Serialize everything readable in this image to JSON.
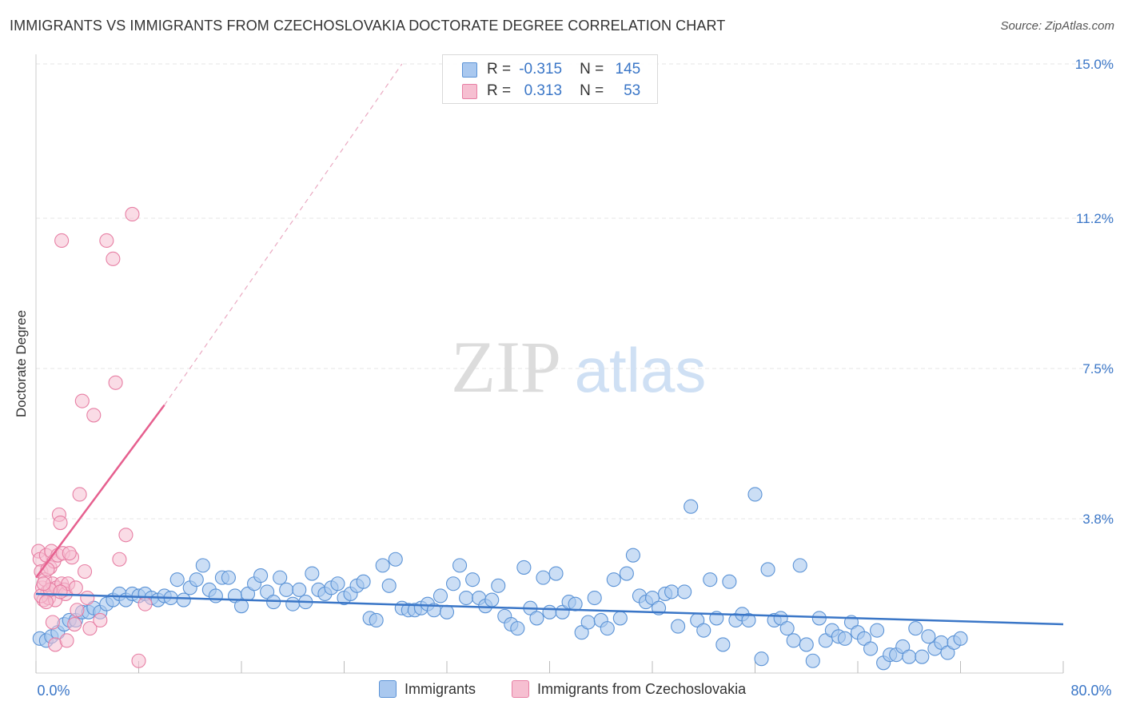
{
  "title": "IMMIGRANTS VS IMMIGRANTS FROM CZECHOSLOVAKIA DOCTORATE DEGREE CORRELATION CHART",
  "source": "Source: ZipAtlas.com",
  "watermark": {
    "zip": "ZIP",
    "atlas": "atlas"
  },
  "legend": {
    "rows": [
      {
        "r_label": "R =",
        "r_value": "-0.315",
        "n_label": "N =",
        "n_value": "145"
      },
      {
        "r_label": "R =",
        "r_value": "0.313",
        "n_label": "N =",
        "n_value": "53"
      }
    ]
  },
  "bottom_legend": [
    "Immigrants",
    "Immigrants from Czechoslovakia"
  ],
  "colors": {
    "blue_fill": "#a9c8ef",
    "blue_stroke": "#5b93d6",
    "blue_line": "#3a76c7",
    "pink_fill": "#f6bfd1",
    "pink_stroke": "#e77fa4",
    "pink_line": "#e6608f",
    "axis_text": "#3a76c7",
    "grid": "#e6e6e6"
  },
  "chart_data": {
    "type": "scatter",
    "title": "IMMIGRANTS VS IMMIGRANTS FROM CZECHOSLOVAKIA DOCTORATE DEGREE CORRELATION CHART",
    "xlabel": "",
    "ylabel": "Doctorate Degree",
    "xlim": [
      0,
      80
    ],
    "ylim": [
      0,
      15
    ],
    "x_tick_labels": [
      "0.0%",
      "80.0%"
    ],
    "y_ticks": [
      3.8,
      7.5,
      11.2,
      15.0
    ],
    "y_tick_labels": [
      "3.8%",
      "7.5%",
      "11.2%",
      "15.0%"
    ],
    "grid": true,
    "series": [
      {
        "name": "Immigrants",
        "R": -0.315,
        "N": 145,
        "trend": {
          "x0": 0,
          "y0": 1.95,
          "x1": 80,
          "y1": 1.2
        },
        "points": [
          [
            0.3,
            0.85
          ],
          [
            0.8,
            0.8
          ],
          [
            1.2,
            0.9
          ],
          [
            1.7,
            1.0
          ],
          [
            2.2,
            1.2
          ],
          [
            2.6,
            1.3
          ],
          [
            3.1,
            1.3
          ],
          [
            3.6,
            1.5
          ],
          [
            4.1,
            1.5
          ],
          [
            4.5,
            1.6
          ],
          [
            5.0,
            1.5
          ],
          [
            5.5,
            1.7
          ],
          [
            6.0,
            1.8
          ],
          [
            6.5,
            1.95
          ],
          [
            7.0,
            1.8
          ],
          [
            7.5,
            1.95
          ],
          [
            8.0,
            1.9
          ],
          [
            8.5,
            1.95
          ],
          [
            9.0,
            1.85
          ],
          [
            9.5,
            1.8
          ],
          [
            10.0,
            1.9
          ],
          [
            10.5,
            1.85
          ],
          [
            11.0,
            2.3
          ],
          [
            11.5,
            1.8
          ],
          [
            12.0,
            2.1
          ],
          [
            12.5,
            2.3
          ],
          [
            13.0,
            2.65
          ],
          [
            13.5,
            2.05
          ],
          [
            14.0,
            1.9
          ],
          [
            14.5,
            2.35
          ],
          [
            15.0,
            2.35
          ],
          [
            15.5,
            1.9
          ],
          [
            16.0,
            1.65
          ],
          [
            16.5,
            1.95
          ],
          [
            17.0,
            2.2
          ],
          [
            17.5,
            2.4
          ],
          [
            18.0,
            2.0
          ],
          [
            18.5,
            1.75
          ],
          [
            19.0,
            2.35
          ],
          [
            19.5,
            2.05
          ],
          [
            20.0,
            1.7
          ],
          [
            20.5,
            2.05
          ],
          [
            21.0,
            1.75
          ],
          [
            21.5,
            2.45
          ],
          [
            22.0,
            2.05
          ],
          [
            22.5,
            1.95
          ],
          [
            23.0,
            2.1
          ],
          [
            23.5,
            2.2
          ],
          [
            24.0,
            1.85
          ],
          [
            24.5,
            1.95
          ],
          [
            25.0,
            2.15
          ],
          [
            25.5,
            2.25
          ],
          [
            26.0,
            1.35
          ],
          [
            26.5,
            1.3
          ],
          [
            27.0,
            2.65
          ],
          [
            27.5,
            2.15
          ],
          [
            28.0,
            2.8
          ],
          [
            28.5,
            1.6
          ],
          [
            29.0,
            1.55
          ],
          [
            29.5,
            1.55
          ],
          [
            30.0,
            1.6
          ],
          [
            30.5,
            1.7
          ],
          [
            31.0,
            1.55
          ],
          [
            31.5,
            1.9
          ],
          [
            32.0,
            1.5
          ],
          [
            32.5,
            2.2
          ],
          [
            33.0,
            2.65
          ],
          [
            33.5,
            1.85
          ],
          [
            34.0,
            2.3
          ],
          [
            34.5,
            1.85
          ],
          [
            35.0,
            1.65
          ],
          [
            35.5,
            1.8
          ],
          [
            36.0,
            2.15
          ],
          [
            36.5,
            1.4
          ],
          [
            37.0,
            1.2
          ],
          [
            37.5,
            1.1
          ],
          [
            38.0,
            2.6
          ],
          [
            38.5,
            1.6
          ],
          [
            39.0,
            1.35
          ],
          [
            39.5,
            2.35
          ],
          [
            40.0,
            1.5
          ],
          [
            40.5,
            2.45
          ],
          [
            41.0,
            1.5
          ],
          [
            41.5,
            1.75
          ],
          [
            42.0,
            1.7
          ],
          [
            42.5,
            1.0
          ],
          [
            43.0,
            1.25
          ],
          [
            43.5,
            1.85
          ],
          [
            44.0,
            1.3
          ],
          [
            44.5,
            1.1
          ],
          [
            45.0,
            2.3
          ],
          [
            45.5,
            1.35
          ],
          [
            46.0,
            2.45
          ],
          [
            46.5,
            2.9
          ],
          [
            47.0,
            1.9
          ],
          [
            47.5,
            1.75
          ],
          [
            48.0,
            1.85
          ],
          [
            48.5,
            1.6
          ],
          [
            49.0,
            1.95
          ],
          [
            49.5,
            2.0
          ],
          [
            50.0,
            1.15
          ],
          [
            50.5,
            2.0
          ],
          [
            51.0,
            4.1
          ],
          [
            51.5,
            1.3
          ],
          [
            52.0,
            1.05
          ],
          [
            52.5,
            2.3
          ],
          [
            53.0,
            1.35
          ],
          [
            53.5,
            0.7
          ],
          [
            54.0,
            2.25
          ],
          [
            54.5,
            1.3
          ],
          [
            55.0,
            1.45
          ],
          [
            55.5,
            1.3
          ],
          [
            56.0,
            4.4
          ],
          [
            56.5,
            0.35
          ],
          [
            57.0,
            2.55
          ],
          [
            57.5,
            1.3
          ],
          [
            58.0,
            1.35
          ],
          [
            58.5,
            1.1
          ],
          [
            59.0,
            0.8
          ],
          [
            59.5,
            2.65
          ],
          [
            60.0,
            0.7
          ],
          [
            60.5,
            0.3
          ],
          [
            61.0,
            1.35
          ],
          [
            61.5,
            0.8
          ],
          [
            62.0,
            1.05
          ],
          [
            62.5,
            0.9
          ],
          [
            63.0,
            0.85
          ],
          [
            63.5,
            1.25
          ],
          [
            64.0,
            1.0
          ],
          [
            64.5,
            0.85
          ],
          [
            65.0,
            0.6
          ],
          [
            65.5,
            1.05
          ],
          [
            66.0,
            0.25
          ],
          [
            66.5,
            0.45
          ],
          [
            67.0,
            0.45
          ],
          [
            67.5,
            0.65
          ],
          [
            68.0,
            0.4
          ],
          [
            68.5,
            1.1
          ],
          [
            69.0,
            0.4
          ],
          [
            69.5,
            0.9
          ],
          [
            70.0,
            0.6
          ],
          [
            70.5,
            0.75
          ],
          [
            71.0,
            0.5
          ],
          [
            71.5,
            0.75
          ],
          [
            72.0,
            0.85
          ]
        ]
      },
      {
        "name": "Immigrants from Czechoslovakia",
        "R": 0.313,
        "N": 53,
        "trend": {
          "x0": 0,
          "y0": 2.35,
          "x1": 10,
          "y1": 6.6,
          "dashed_to": {
            "x": 28.5,
            "y": 15.0
          }
        },
        "points": [
          [
            0.2,
            3.0
          ],
          [
            0.3,
            2.8
          ],
          [
            0.4,
            2.5
          ],
          [
            0.5,
            2.1
          ],
          [
            0.6,
            1.8
          ],
          [
            0.7,
            2.3
          ],
          [
            0.8,
            2.9
          ],
          [
            0.9,
            2.0
          ],
          [
            1.0,
            1.85
          ],
          [
            1.1,
            2.6
          ],
          [
            1.2,
            3.0
          ],
          [
            1.3,
            2.2
          ],
          [
            1.4,
            2.75
          ],
          [
            1.5,
            1.8
          ],
          [
            1.6,
            2.1
          ],
          [
            1.7,
            2.9
          ],
          [
            1.8,
            3.9
          ],
          [
            1.9,
            3.7
          ],
          [
            2.0,
            2.2
          ],
          [
            2.1,
            2.95
          ],
          [
            2.2,
            2.05
          ],
          [
            2.3,
            1.95
          ],
          [
            2.5,
            2.2
          ],
          [
            2.0,
            10.65
          ],
          [
            2.8,
            2.85
          ],
          [
            3.0,
            1.2
          ],
          [
            3.2,
            1.55
          ],
          [
            3.4,
            4.4
          ],
          [
            3.6,
            6.7
          ],
          [
            3.8,
            2.5
          ],
          [
            4.0,
            1.85
          ],
          [
            4.2,
            1.1
          ],
          [
            4.5,
            6.35
          ],
          [
            5.0,
            1.3
          ],
          [
            5.5,
            10.65
          ],
          [
            6.0,
            10.2
          ],
          [
            6.2,
            7.15
          ],
          [
            6.5,
            2.8
          ],
          [
            7.0,
            3.4
          ],
          [
            7.5,
            11.3
          ],
          [
            8.0,
            0.3
          ],
          [
            8.5,
            1.7
          ],
          [
            1.5,
            0.7
          ],
          [
            0.4,
            1.9
          ],
          [
            0.9,
            2.55
          ],
          [
            2.6,
            2.95
          ],
          [
            1.1,
            2.05
          ],
          [
            1.9,
            2.0
          ],
          [
            0.6,
            2.2
          ],
          [
            2.4,
            0.8
          ],
          [
            3.1,
            2.1
          ],
          [
            1.3,
            1.25
          ],
          [
            0.8,
            1.75
          ]
        ]
      }
    ]
  }
}
